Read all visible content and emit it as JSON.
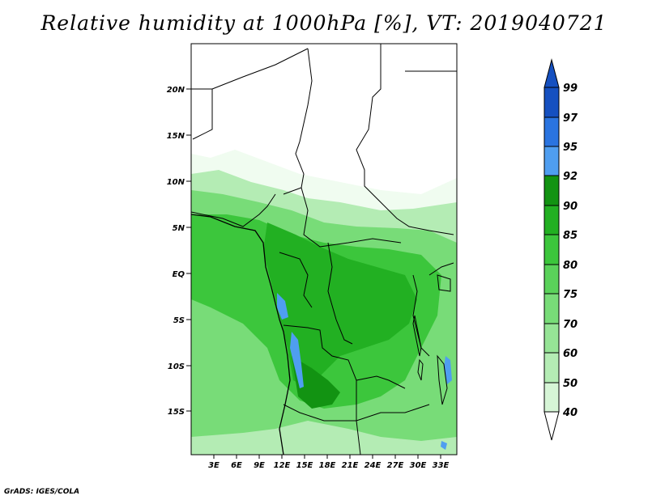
{
  "title": "Relative humidity at 1000hPa [%], VT: 2019040721",
  "credit": "GrADS: IGES/COLA",
  "colors": {
    "c40": "#f0fcf0",
    "c50": "#d6f5d6",
    "c60": "#b4ecb4",
    "c70": "#96e496",
    "c75": "#78dc78",
    "c80": "#5ad25a",
    "c85": "#3cc63c",
    "c90": "#22b022",
    "c92": "#129312",
    "c95": "#4f9ef0",
    "c97": "#2a74e0",
    "c99": "#1550c0",
    "water_blue": "#3c8ee8",
    "border": "#000000"
  },
  "map": {
    "lat_labels": [
      "20N",
      "15N",
      "10N",
      "5N",
      "EQ",
      "5S",
      "10S",
      "15S"
    ],
    "lon_labels": [
      "3E",
      "6E",
      "9E",
      "12E",
      "15E",
      "18E",
      "21E",
      "24E",
      "27E",
      "30E",
      "33E"
    ]
  },
  "colorbar": {
    "levels": [
      "99",
      "97",
      "95",
      "92",
      "90",
      "85",
      "80",
      "75",
      "70",
      "60",
      "50",
      "40"
    ]
  }
}
